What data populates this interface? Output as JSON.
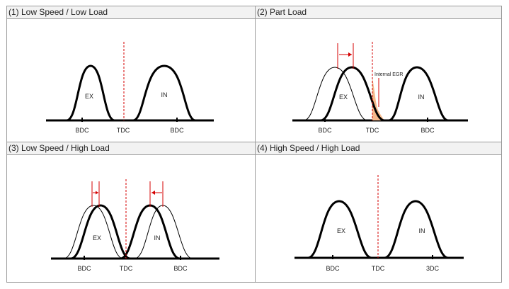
{
  "panels": {
    "p1": {
      "title": "(1) Low Speed / Low Load",
      "ex_label": "EX",
      "in_label": "IN",
      "bdc_left": "BDC",
      "tdc": "TDC",
      "bdc_right": "BDC"
    },
    "p2": {
      "title": "(2) Part Load",
      "ex_label": "EX",
      "in_label": "IN",
      "bdc_left": "BDC",
      "tdc": "TDC",
      "bdc_right": "BDC",
      "egr_label": "Internal EGR"
    },
    "p3": {
      "title": "(3) Low Speed / High Load",
      "ex_label": "EX",
      "in_label": "IN",
      "bdc_left": "BDC",
      "tdc": "TDC",
      "bdc_right": "BDC"
    },
    "p4": {
      "title": "(4) High Speed / High Load",
      "ex_label": "EX",
      "in_label": "IN",
      "bdc_left": "BDC",
      "tdc": "TDC",
      "bdc_right": "3DC"
    }
  },
  "colors": {
    "border": "#9a9a9a",
    "header_bg": "#f2f2f2",
    "curve": "#000000",
    "tdc_line": "#d40000",
    "arrow": "#d40000",
    "egr_fill": "#f5b88a"
  }
}
